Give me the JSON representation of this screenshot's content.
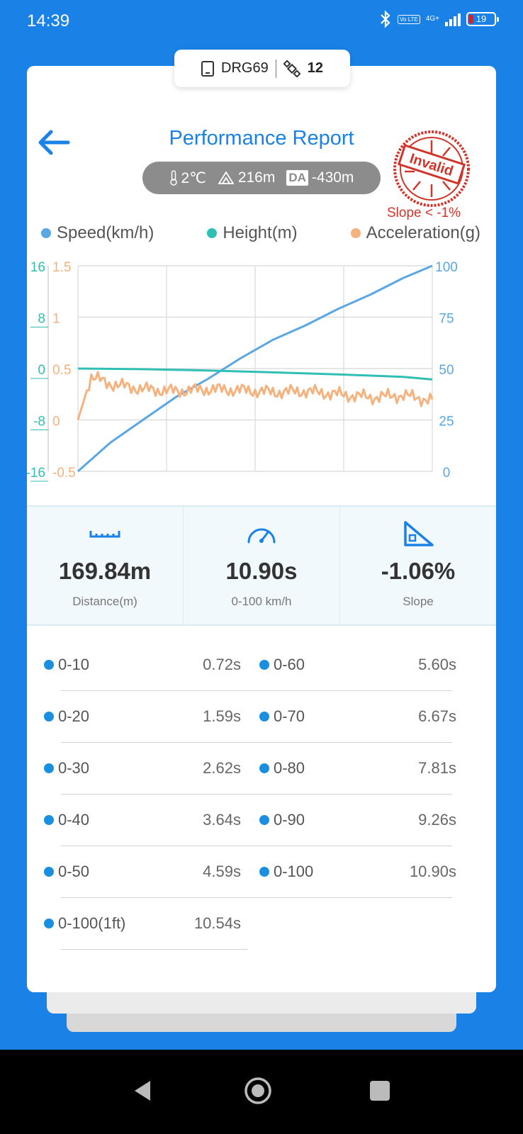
{
  "status": {
    "time": "14:39",
    "volte": "Vo LTE",
    "network": "4G+",
    "battery": "19"
  },
  "device": {
    "name": "DRG69",
    "satellites": "12"
  },
  "header": {
    "title": "Performance Report"
  },
  "conditions": {
    "temperature": "2℃",
    "altitude": "216m",
    "da_label": "DA",
    "density_altitude": "-430m"
  },
  "stamp": {
    "text": "Invalid",
    "note": "Slope < -1%",
    "color": "#d0352b"
  },
  "legend": [
    {
      "label": "Speed(km/h)",
      "color": "#5aa7e3"
    },
    {
      "label": "Height(m)",
      "color": "#2fbfb5"
    },
    {
      "label": "Acceleration(g)",
      "color": "#f5b27e"
    }
  ],
  "chart_data": {
    "type": "line",
    "series": [
      {
        "name": "Speed(km/h)",
        "axis": "right",
        "color": "#5aa7e3",
        "x": [
          0,
          0.5,
          1,
          2,
          3,
          4,
          5,
          6,
          7,
          8,
          9,
          10,
          10.9
        ],
        "values": [
          0,
          7,
          14,
          25,
          36,
          45,
          55,
          64,
          71,
          79,
          86,
          94,
          100
        ]
      },
      {
        "name": "Height(m)",
        "axis": "left-height",
        "color": "#2fbfb5",
        "x": [
          0,
          2,
          4,
          6,
          8,
          10,
          10.9
        ],
        "values": [
          0,
          -0.1,
          -0.3,
          -0.6,
          -0.9,
          -1.3,
          -1.7
        ]
      },
      {
        "name": "Acceleration(g)",
        "axis": "left-acc",
        "color": "#f5b27e",
        "x": [
          0,
          0.4,
          1,
          2,
          3,
          4,
          5,
          6,
          7,
          8,
          9,
          10,
          10.9
        ],
        "values": [
          0,
          0.42,
          0.35,
          0.3,
          0.28,
          0.3,
          0.29,
          0.27,
          0.28,
          0.25,
          0.22,
          0.24,
          0.19
        ]
      }
    ],
    "axes": {
      "left_height": {
        "range": [
          -16,
          16
        ],
        "ticks": [
          "16",
          "8",
          "0",
          "-8",
          "-16"
        ],
        "color": "#2fbfb5"
      },
      "left_acc": {
        "range": [
          -0.5,
          1.5
        ],
        "ticks": [
          "1.5",
          "1",
          "0.5",
          "0",
          "-0.5"
        ],
        "color": "#f5b27e"
      },
      "right_speed": {
        "range": [
          0,
          100
        ],
        "ticks": [
          "100",
          "75",
          "50",
          "25",
          "0"
        ],
        "color": "#5aa7e3"
      }
    },
    "x_range": [
      0,
      10.9
    ],
    "grid": true
  },
  "stats": [
    {
      "icon": "ruler-icon",
      "value": "169.84m",
      "label": "Distance(m)"
    },
    {
      "icon": "speedometer-icon",
      "value": "10.90s",
      "label": "0-100 km/h"
    },
    {
      "icon": "slope-icon",
      "value": "-1.06%",
      "label": "Slope"
    }
  ],
  "splits": [
    {
      "name": "0-10",
      "time": "0.72s"
    },
    {
      "name": "0-60",
      "time": "5.60s"
    },
    {
      "name": "0-20",
      "time": "1.59s"
    },
    {
      "name": "0-70",
      "time": "6.67s"
    },
    {
      "name": "0-30",
      "time": "2.62s"
    },
    {
      "name": "0-80",
      "time": "7.81s"
    },
    {
      "name": "0-40",
      "time": "3.64s"
    },
    {
      "name": "0-90",
      "time": "9.26s"
    },
    {
      "name": "0-50",
      "time": "4.59s"
    },
    {
      "name": "0-100",
      "time": "10.90s"
    },
    {
      "name": "0-100(1ft)",
      "time": "10.54s"
    }
  ]
}
